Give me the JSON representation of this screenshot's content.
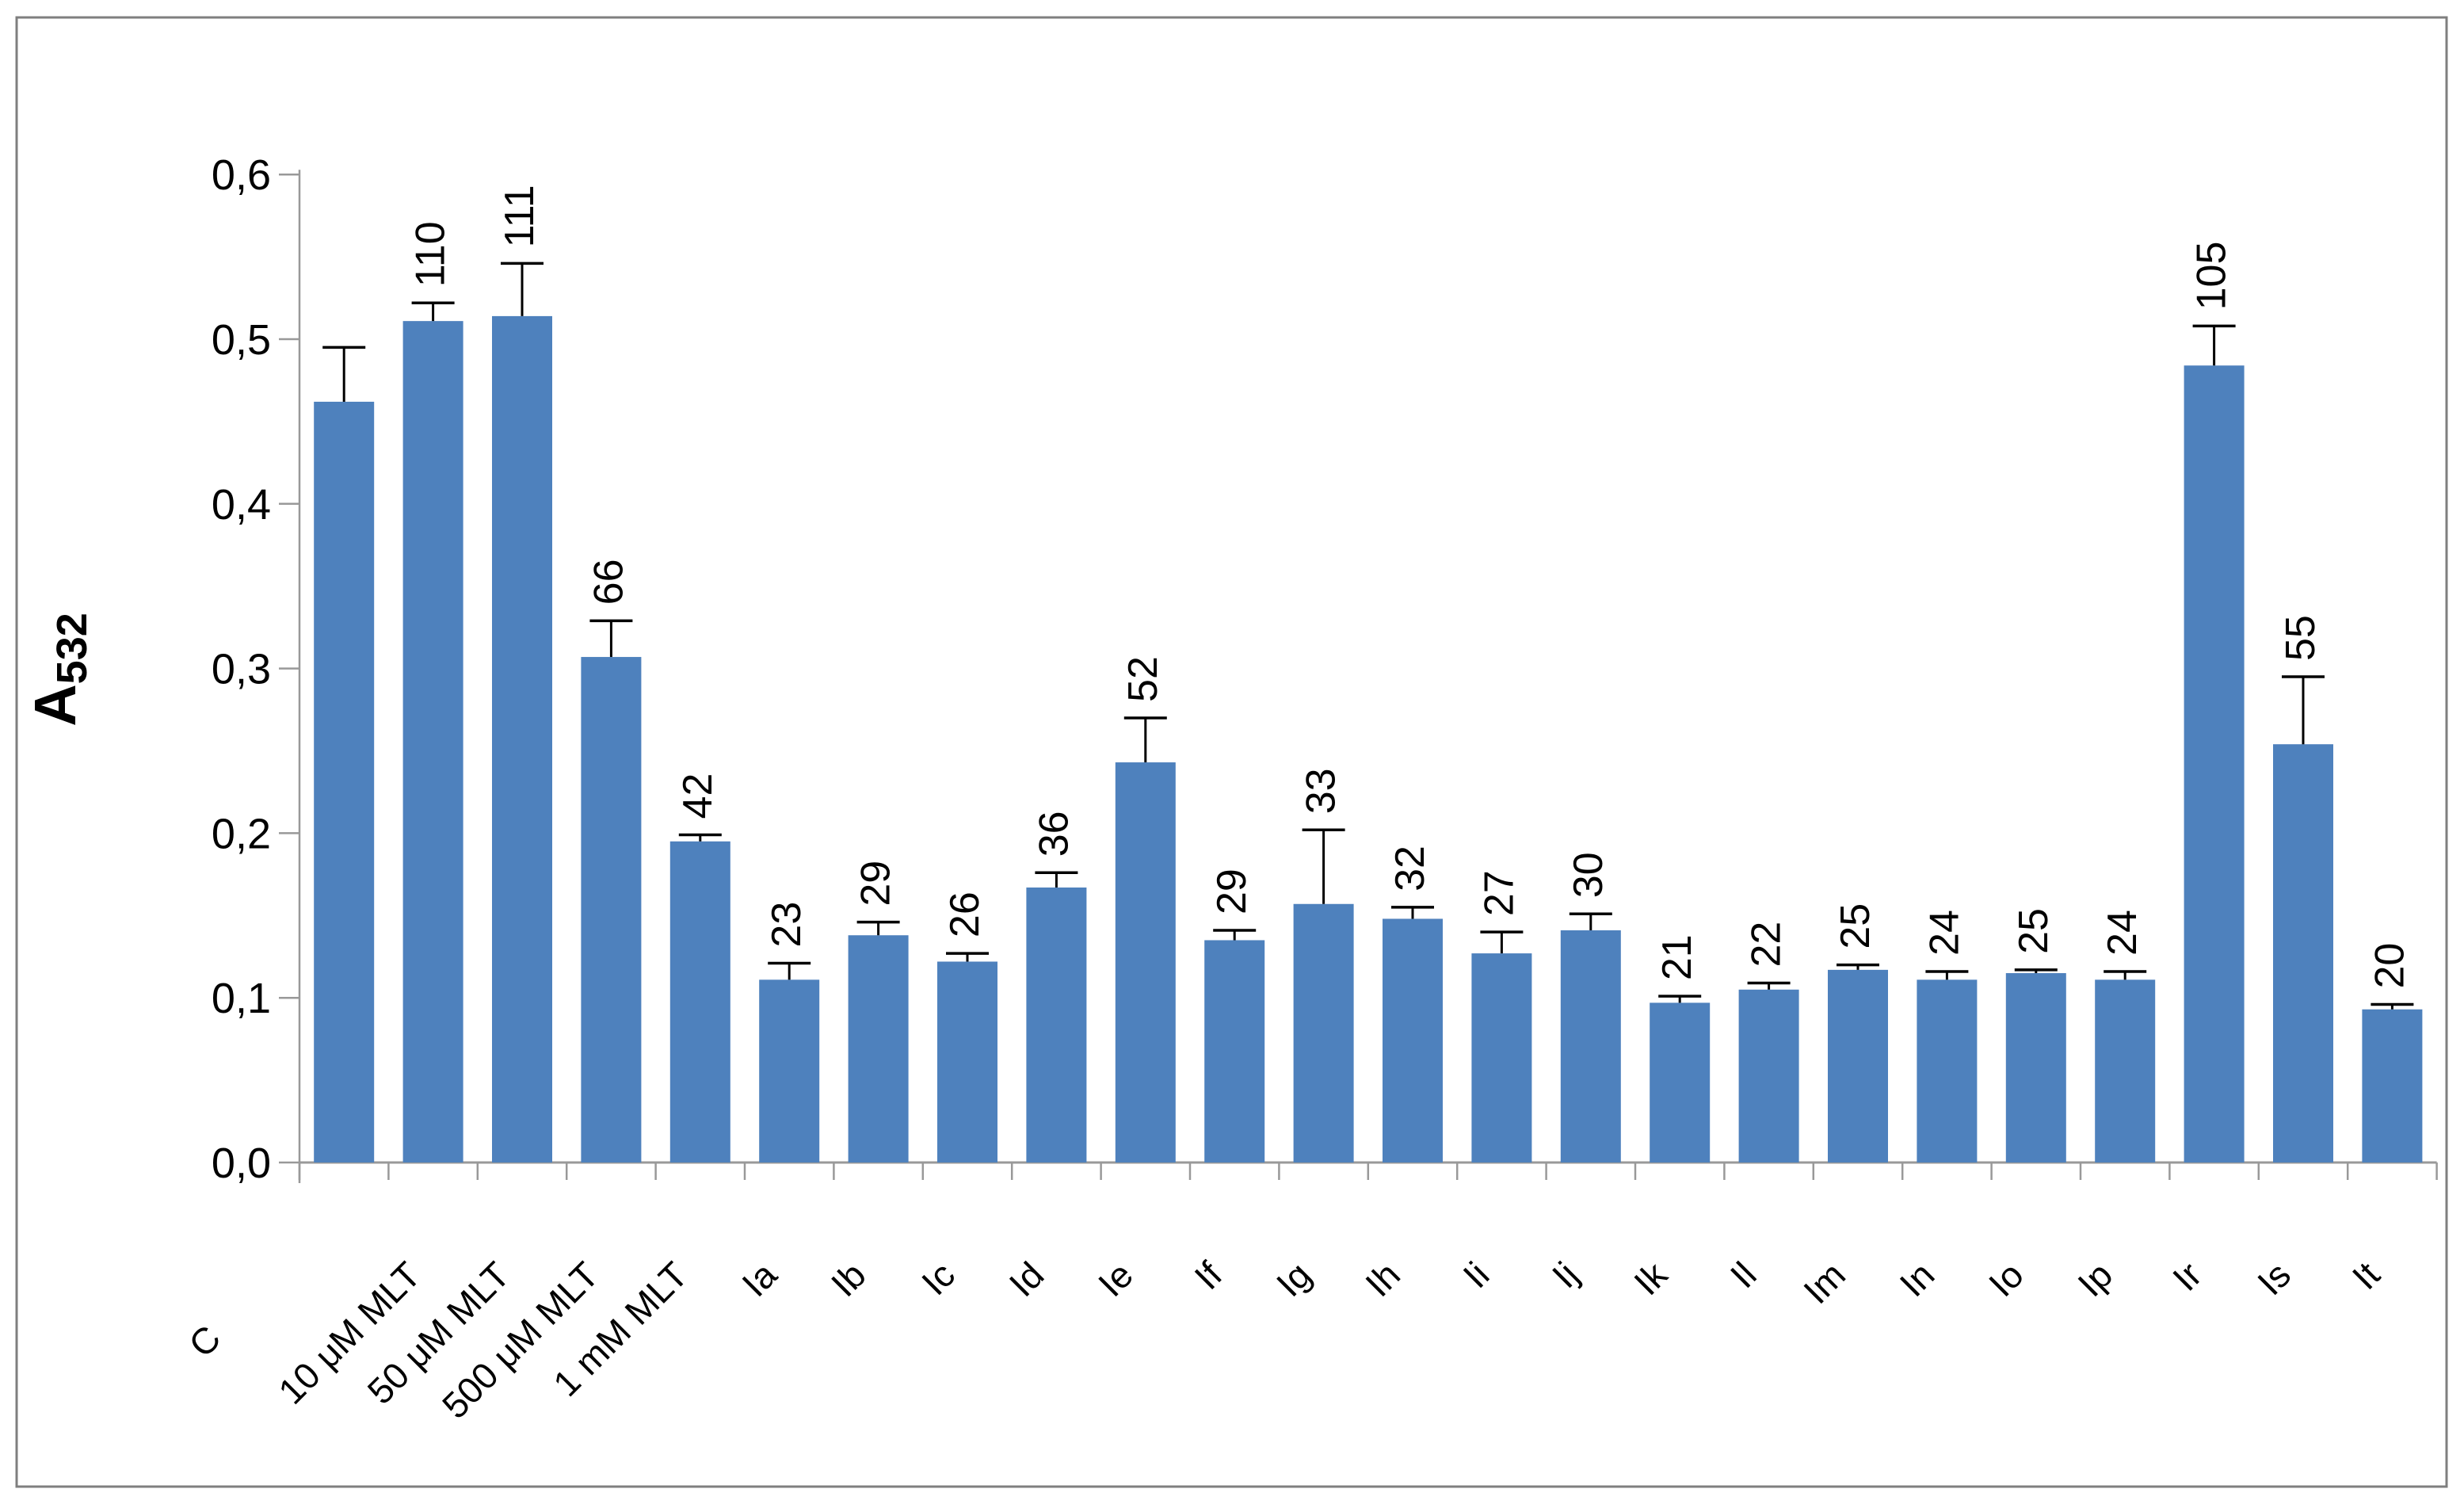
{
  "page": {
    "background_color": "#FFFFFF",
    "frame_color": "#7F7F7F"
  },
  "chart_data": {
    "type": "bar",
    "title": "",
    "ylabel": {
      "base": "A",
      "subscript": "532"
    },
    "xlabel": "",
    "ylim": [
      0,
      0.6
    ],
    "y_tick_step": 0.1,
    "y_tick_labels": [
      "0,0",
      "0,1",
      "0,2",
      "0,3",
      "0,4",
      "0,5",
      "0,6"
    ],
    "decimal_separator": ",",
    "grid": false,
    "legend": null,
    "categories": [
      "C",
      "10 μM MLT",
      "50 μM MLT",
      "500 μM MLT",
      "1 mM MLT",
      "Ia",
      "Ib",
      "Ic",
      "Id",
      "Ie",
      "If",
      "Ig",
      "Ih",
      "Ii",
      "Ij",
      "Ik",
      "Il",
      "Im",
      "In",
      "Io",
      "Ip",
      "Ir",
      "Is",
      "It"
    ],
    "values": [
      0.462,
      0.511,
      0.514,
      0.307,
      0.195,
      0.111,
      0.138,
      0.122,
      0.167,
      0.243,
      0.135,
      0.157,
      0.148,
      0.127,
      0.141,
      0.097,
      0.105,
      0.117,
      0.111,
      0.115,
      0.111,
      0.484,
      0.254,
      0.093
    ],
    "upper_errors": [
      0.033,
      0.011,
      0.032,
      0.022,
      0.004,
      0.01,
      0.008,
      0.005,
      0.009,
      0.027,
      0.006,
      0.045,
      0.007,
      0.013,
      0.01,
      0.004,
      0.004,
      0.003,
      0.005,
      0.002,
      0.005,
      0.024,
      0.041,
      0.003
    ],
    "bar_labels": [
      "",
      "110",
      "111",
      "66",
      "42",
      "23",
      "29",
      "26",
      "36",
      "52",
      "29",
      "33",
      "32",
      "27",
      "30",
      "21",
      "22",
      "25",
      "24",
      "25",
      "24",
      "105",
      "55",
      "20"
    ],
    "bar_color": "#4E81BD",
    "error_color": "#000000",
    "axis_color": "#999999",
    "label_color": "#000000",
    "value_label_rotation": -90,
    "category_label_rotation": -45
  }
}
